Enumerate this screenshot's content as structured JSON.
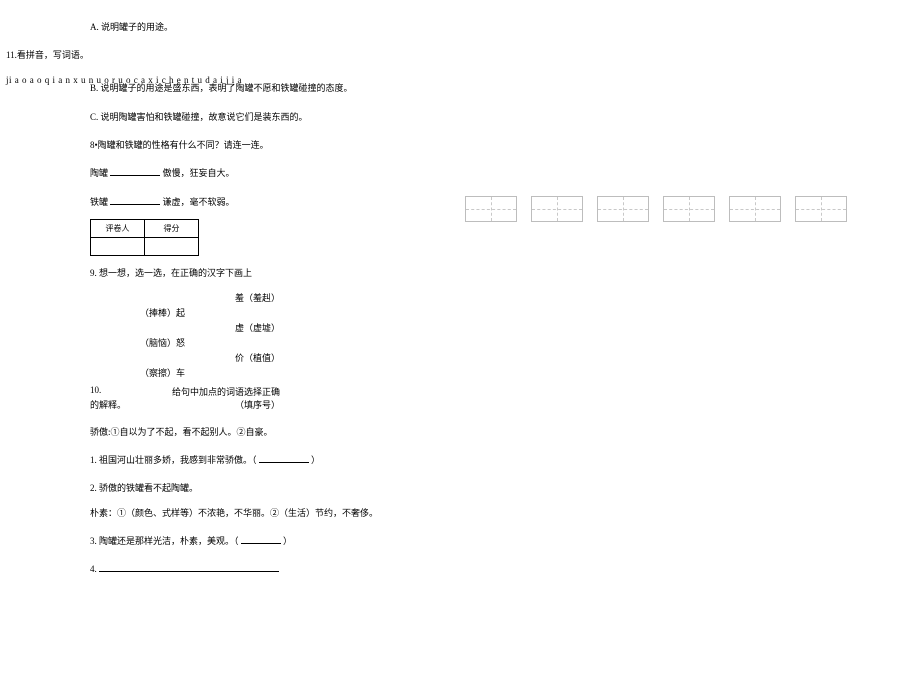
{
  "a_option": "A. 说明罐子的用途。",
  "q11": "11.看拼音，写词语。",
  "pinyin_line": "ji a o a o q i a n x u n u o r u o c a x i c h e n t u d a i j i a",
  "b_option": "B. 说明罐子的用途是盛东西，表明了陶罐不愿和铁罐碰撞的态度。",
  "c_option": "C. 说明陶罐害怕和铁罐碰撞，故意说它们是装东西的。",
  "q8_lead": "8•陶罐和铁罐的性格有什么不同？请连一连。",
  "tao_label": "陶罐",
  "tao_trait": "傲慢，狂妄自大。",
  "tie_label": "铁罐",
  "tie_trait": "谦虚，毫不软弱。",
  "score_hdr1": "评卷人",
  "score_hdr2": "得分",
  "q9_lead_a": "9.    想一想，选一选，在正确的汉字下画上",
  "q9_row1_r": "羞（羞赳）",
  "q9_row2_l": "（捧棒）起",
  "q9_row3_r": "虚（虚墟）",
  "q9_row4_l": "（脑恼）怒",
  "q9_row5_r": "价（植值）",
  "q9_row6_l": "（察擦）车",
  "q10_left": "10.",
  "q10_right": "给句中加点的词语选择正确",
  "q10_tail": "的解释。",
  "q10_tail_r": "（填序号）",
  "jiaoao_def": "骄傲:①自以为了不起，看不起别人。②自豪。",
  "sent1_a": "1. 祖国河山壮丽多娇，我感到非常骄傲。（",
  "sent1_b": "）",
  "sent2": "2. 骄傲的铁罐看不起陶罐。",
  "pusu_def": "朴素：①（颜色、式样等）不浓艳，不华丽。②（生活）节约，不奢侈。",
  "sent3_a": "3. 陶罐还是那样光洁，朴素，美观。（",
  "sent3_b": "）",
  "sent4": "4.",
  "grid_count": 6
}
